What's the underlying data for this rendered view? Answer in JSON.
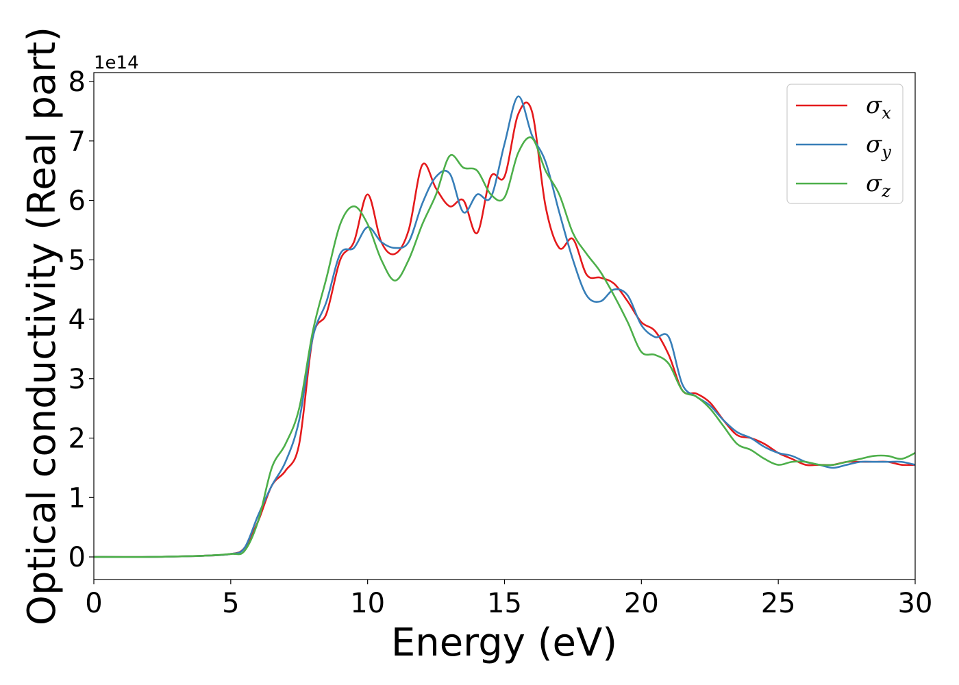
{
  "chart_data": {
    "type": "line",
    "title": "",
    "xlabel": "Energy (eV)",
    "ylabel": "Optical conductivity (Real part)",
    "y_offset_text": "1e14",
    "xlim": [
      0,
      30
    ],
    "ylim": [
      -0.38,
      8.15
    ],
    "x_ticks": [
      0,
      5,
      10,
      15,
      20,
      25,
      30
    ],
    "y_ticks": [
      0,
      1,
      2,
      3,
      4,
      5,
      6,
      7,
      8
    ],
    "grid": false,
    "legend_position": "top-right",
    "series": [
      {
        "name": "σx",
        "legend_symbol": "σ",
        "legend_subscript": "x",
        "color": "#e41a1c",
        "x": [
          0,
          2,
          4,
          5,
          5.5,
          6,
          6.5,
          7,
          7.5,
          8,
          8.5,
          9,
          9.5,
          10,
          10.5,
          11,
          11.5,
          12,
          12.5,
          13,
          13.5,
          14,
          14.5,
          15,
          15.5,
          16,
          16.5,
          17,
          17.5,
          18,
          18.5,
          19,
          19.5,
          20,
          20.5,
          21,
          21.5,
          22,
          22.5,
          23,
          23.5,
          24,
          24.5,
          25,
          25.5,
          26,
          26.5,
          27,
          27.5,
          28,
          28.5,
          29,
          29.5,
          30
        ],
        "y": [
          0,
          0,
          0.02,
          0.05,
          0.15,
          0.6,
          1.2,
          1.45,
          1.9,
          3.7,
          4.1,
          5.0,
          5.3,
          6.1,
          5.3,
          5.1,
          5.5,
          6.6,
          6.2,
          5.9,
          6.0,
          5.45,
          6.4,
          6.4,
          7.45,
          7.5,
          5.9,
          5.2,
          5.35,
          4.75,
          4.7,
          4.6,
          4.3,
          3.95,
          3.8,
          3.4,
          2.8,
          2.75,
          2.6,
          2.3,
          2.05,
          2.0,
          1.9,
          1.75,
          1.65,
          1.55,
          1.55,
          1.55,
          1.6,
          1.6,
          1.6,
          1.6,
          1.55,
          1.55
        ]
      },
      {
        "name": "σy",
        "legend_symbol": "σ",
        "legend_subscript": "y",
        "color": "#377eb8",
        "x": [
          0,
          2,
          4,
          5,
          5.5,
          6,
          6.5,
          7,
          7.5,
          8,
          8.5,
          9,
          9.5,
          10,
          10.5,
          11,
          11.5,
          12,
          12.5,
          13,
          13.5,
          14,
          14.5,
          15,
          15.5,
          16,
          16.5,
          17,
          17.5,
          18,
          18.5,
          19,
          19.5,
          20,
          20.5,
          21,
          21.5,
          22,
          22.5,
          23,
          23.5,
          24,
          24.5,
          25,
          25.5,
          26,
          26.5,
          27,
          27.5,
          28,
          28.5,
          29,
          29.5,
          30
        ],
        "y": [
          0,
          0,
          0.02,
          0.05,
          0.15,
          0.7,
          1.2,
          1.6,
          2.3,
          3.7,
          4.3,
          5.1,
          5.2,
          5.55,
          5.3,
          5.2,
          5.3,
          5.95,
          6.4,
          6.45,
          5.8,
          6.1,
          6.05,
          6.95,
          7.75,
          7.1,
          6.65,
          5.8,
          5.0,
          4.4,
          4.3,
          4.5,
          4.4,
          3.9,
          3.7,
          3.7,
          2.9,
          2.7,
          2.55,
          2.3,
          2.1,
          2.0,
          1.85,
          1.75,
          1.7,
          1.6,
          1.55,
          1.5,
          1.55,
          1.6,
          1.6,
          1.6,
          1.6,
          1.55
        ]
      },
      {
        "name": "σz",
        "legend_symbol": "σ",
        "legend_subscript": "z",
        "color": "#4daf4a",
        "x": [
          0,
          2,
          4,
          5,
          5.5,
          6,
          6.5,
          7,
          7.5,
          8,
          8.5,
          9,
          9.5,
          10,
          10.5,
          11,
          11.5,
          12,
          12.5,
          13,
          13.5,
          14,
          14.5,
          15,
          15.5,
          16,
          16.5,
          17,
          17.5,
          18,
          18.5,
          19,
          19.5,
          20,
          20.5,
          21,
          21.5,
          22,
          22.5,
          23,
          23.5,
          24,
          24.5,
          25,
          25.5,
          26,
          26.5,
          27,
          27.5,
          28,
          28.5,
          29,
          29.5,
          30
        ],
        "y": [
          0,
          0,
          0.02,
          0.05,
          0.1,
          0.6,
          1.5,
          1.9,
          2.5,
          3.8,
          4.7,
          5.6,
          5.9,
          5.6,
          5.0,
          4.65,
          5.0,
          5.6,
          6.1,
          6.75,
          6.55,
          6.5,
          6.1,
          6.05,
          6.8,
          7.05,
          6.5,
          6.1,
          5.45,
          5.1,
          4.8,
          4.4,
          3.95,
          3.45,
          3.4,
          3.25,
          2.8,
          2.7,
          2.5,
          2.2,
          1.9,
          1.8,
          1.65,
          1.55,
          1.6,
          1.6,
          1.55,
          1.55,
          1.6,
          1.65,
          1.7,
          1.7,
          1.65,
          1.75
        ]
      }
    ]
  }
}
